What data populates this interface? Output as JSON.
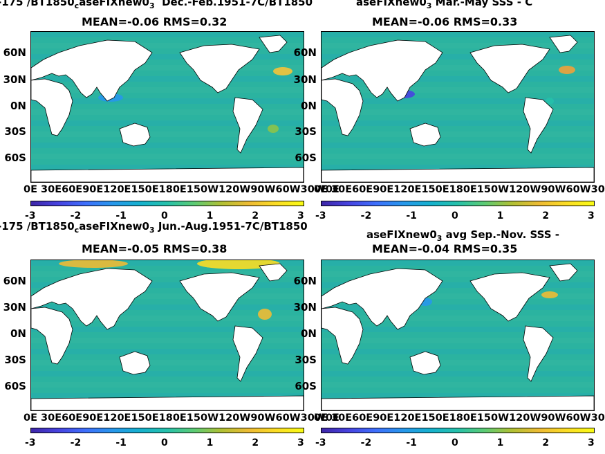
{
  "chart_data": [
    {
      "type": "heatmap",
      "title_left": "-175 /BT1850",
      "title_sub": "c",
      "title_mid": "aseFIXnew0",
      "title_sub2": "3",
      "title_right": "Dec.-Feb.1951-7C/BT1850",
      "stats": "MEAN=-0.06   RMS=0.32",
      "y_tick_labels": [
        "60N",
        "30N",
        "0N",
        "30S",
        "60S"
      ],
      "x_tick_labels": "0E 30E60E90E120E150E180E150W120W90W60W30W0E",
      "colorbar_ticks": [
        "-3",
        "-2",
        "-1",
        "0",
        "1",
        "2",
        "3"
      ],
      "clim": [
        -3,
        3
      ]
    },
    {
      "type": "heatmap",
      "title_left": "aseFIXnew0",
      "title_sub": "3",
      "title_right": "Mar.-May SSS - C",
      "stats": "MEAN=-0.06   RMS=0.33",
      "y_tick_labels": [
        "60N",
        "30N",
        "0N",
        "30S",
        "60S"
      ],
      "x_tick_labels": "0E 30E60E90E120E150E180E150W120W90W60W30W0E",
      "colorbar_ticks": [
        "-3",
        "-2",
        "-1",
        "0",
        "1",
        "2",
        "3"
      ],
      "clim": [
        -3,
        3
      ]
    },
    {
      "type": "heatmap",
      "title_left": "-175 /BT1850",
      "title_sub": "c",
      "title_mid": "aseFIXnew0",
      "title_sub2": "3",
      "title_right": "Jun.-Aug.1951-7C/BT1850",
      "stats": "MEAN=-0.05   RMS=0.38",
      "y_tick_labels": [
        "60N",
        "30N",
        "0N",
        "30S",
        "60S"
      ],
      "x_tick_labels": "0E 30E60E90E120E150E180E150W120W90W60W30W0E",
      "colorbar_ticks": [
        "-3",
        "-2",
        "-1",
        "0",
        "1",
        "2",
        "3"
      ],
      "clim": [
        -3,
        3
      ]
    },
    {
      "type": "heatmap",
      "title_left": "aseFIXnew0",
      "title_sub": "3",
      "title_right": "avg Sep.-Nov. SSS -",
      "stats": "MEAN=-0.04   RMS=0.35",
      "y_tick_labels": [
        "60N",
        "30N",
        "0N",
        "30S",
        "60S"
      ],
      "x_tick_labels": "0E 30E60E90E120E150E180E150W120W90W60W30W0E",
      "colorbar_ticks": [
        "-3",
        "-2",
        "-1",
        "0",
        "1",
        "2",
        "3"
      ],
      "clim": [
        -3,
        3
      ]
    }
  ],
  "colors": {
    "ocean_base": "#2bb3a0",
    "land": "#ffffff",
    "colormap": [
      "#3e26a8",
      "#4743e0",
      "#3e6ffc",
      "#2797eb",
      "#15b1ce",
      "#26c1aa",
      "#5dcb73",
      "#b1c034",
      "#eebb34",
      "#fbdd25",
      "#f9fb15"
    ]
  }
}
